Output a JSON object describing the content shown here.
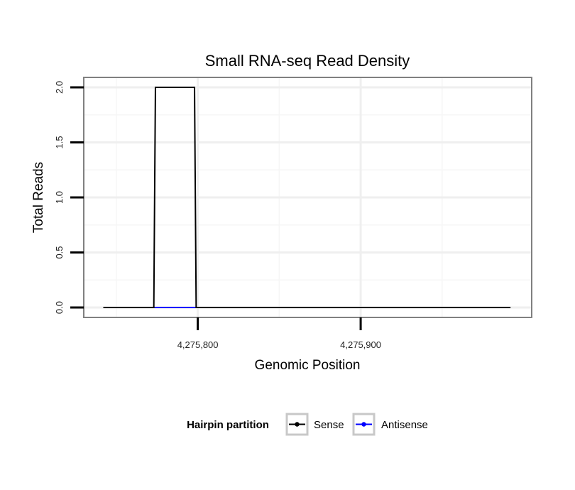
{
  "chart_data": {
    "type": "line",
    "title": "Small RNA-seq Read Density",
    "xlabel": "Genomic Position",
    "ylabel": "Total Reads",
    "xlim": [
      4275730,
      4276005
    ],
    "ylim": [
      -0.09,
      2.09
    ],
    "x_ticks": [
      {
        "value": 4275800,
        "label": "4,275,800"
      },
      {
        "value": 4275900,
        "label": "4,275,900"
      }
    ],
    "x_grid_minor": [
      4275750,
      4275850,
      4275950
    ],
    "y_ticks": [
      {
        "value": 0.0,
        "label": "0.0"
      },
      {
        "value": 0.5,
        "label": "0.5"
      },
      {
        "value": 1.0,
        "label": "1.0"
      },
      {
        "value": 1.5,
        "label": "1.5"
      },
      {
        "value": 2.0,
        "label": "2.0"
      }
    ],
    "y_grid_minor": [
      0.25,
      0.75,
      1.25,
      1.75
    ],
    "grid": true,
    "legend": {
      "title": "Hairpin partition",
      "placement": "bottom"
    },
    "series": [
      {
        "name": "Sense",
        "color": "#000000",
        "points": [
          [
            4275742,
            0
          ],
          [
            4275773,
            0
          ],
          [
            4275774,
            2
          ],
          [
            4275798,
            2
          ],
          [
            4275799,
            0
          ],
          [
            4275992,
            0
          ]
        ]
      },
      {
        "name": "Antisense",
        "color": "#0000ff",
        "points": [
          [
            4275773,
            0
          ],
          [
            4275799,
            0
          ]
        ]
      }
    ]
  }
}
